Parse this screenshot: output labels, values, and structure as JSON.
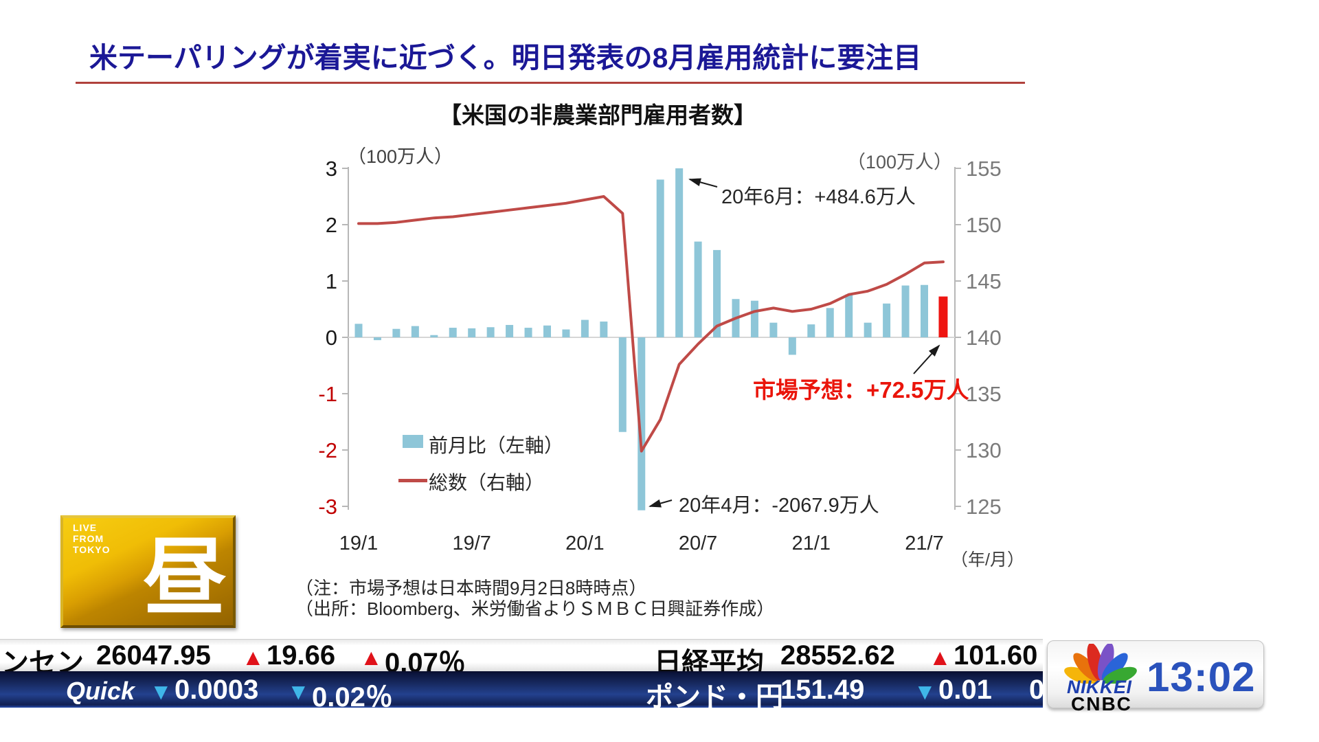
{
  "header": {
    "title": "米テーパリングが着実に近づく。明日発表の8月雇用統計に要注目",
    "title_color": "#1b1896",
    "underline_color": "#b0413c"
  },
  "chart": {
    "title": "【米国の非農業部門雇用者数】",
    "left_axis_unit": "（100万人）",
    "right_axis_unit": "（100万人）",
    "x_axis_unit": "（年/月）",
    "legend": {
      "bar_label": "前月比（左軸）",
      "line_label": "総数（右軸）"
    },
    "notes": [
      "（注：市場予想は日本時間9月2日8時時点）",
      "（出所：Bloomberg、米労働省よりＳＭＢＣ日興証券作成）"
    ]
  },
  "chart_data": {
    "type": "combo",
    "categories": [
      "19/1",
      "19/2",
      "19/3",
      "19/4",
      "19/5",
      "19/6",
      "19/7",
      "19/8",
      "19/9",
      "19/10",
      "19/11",
      "19/12",
      "20/1",
      "20/2",
      "20/3",
      "20/4",
      "20/5",
      "20/6",
      "20/7",
      "20/8",
      "20/9",
      "20/10",
      "20/11",
      "20/12",
      "21/1",
      "21/2",
      "21/3",
      "21/4",
      "21/5",
      "21/6",
      "21/7",
      "21/8"
    ],
    "x_tick_indices": [
      0,
      6,
      12,
      18,
      24,
      30
    ],
    "series": [
      {
        "name": "前月比（左軸）",
        "type": "bar",
        "axis": "left",
        "color": "#8ec6d8",
        "forecast_index": 31,
        "forecast_color": "#ee1511",
        "values": [
          0.24,
          -0.05,
          0.15,
          0.2,
          0.04,
          0.17,
          0.16,
          0.18,
          0.22,
          0.17,
          0.21,
          0.14,
          0.31,
          0.28,
          -1.68,
          -20.679,
          2.8,
          4.846,
          1.7,
          1.55,
          0.68,
          0.65,
          0.26,
          -0.31,
          0.23,
          0.52,
          0.76,
          0.26,
          0.6,
          0.92,
          0.93,
          0.725
        ]
      },
      {
        "name": "総数（右軸）",
        "type": "line",
        "axis": "right",
        "color": "#bf4a47",
        "values": [
          150.1,
          150.1,
          150.2,
          150.4,
          150.6,
          150.7,
          150.9,
          151.1,
          151.3,
          151.5,
          151.7,
          151.9,
          152.2,
          152.5,
          151.0,
          129.9,
          132.7,
          137.6,
          139.4,
          141.0,
          141.7,
          142.3,
          142.6,
          142.3,
          142.5,
          143.0,
          143.8,
          144.1,
          144.7,
          145.6,
          146.6,
          146.7
        ]
      }
    ],
    "left_axis": {
      "min": -3,
      "max": 3,
      "ticks": [
        3,
        2,
        1,
        0,
        -1,
        -2,
        -3
      ],
      "label_color": "#1a1a1a",
      "negative_label_color": "#c00000"
    },
    "right_axis": {
      "min": 125,
      "max": 155,
      "ticks": [
        155,
        150,
        145,
        140,
        135,
        130,
        125
      ],
      "label_color": "#7a7a7a"
    },
    "grid": "zero-line-only",
    "annotations": [
      {
        "text": "20年6月：+484.6万人",
        "target": "20/6"
      },
      {
        "text": "20年4月：-2067.9万人",
        "target": "20/4"
      },
      {
        "text": "市場予想：+72.5万人",
        "target": "21/8",
        "color": "#ea150b"
      }
    ]
  },
  "badge": {
    "live_line1": "LIVE",
    "live_line2": "FROM",
    "live_line3": "TOKYO",
    "char": "昼"
  },
  "ticker": {
    "up_icon": "▲",
    "down_icon": "▼",
    "row1": {
      "name1": "ンセン",
      "price1": "26047.95",
      "chg1": "19.66",
      "pct1": "0.07％",
      "name2": "日経平均",
      "price2": "28552.62",
      "chg2": "101.60"
    },
    "row2": {
      "brand": "Quick",
      "chg1": "0.0003",
      "pct1": "0.02％",
      "name2": "ポンド・円",
      "price2": "151.49",
      "chg2": "0.01",
      "extra": "0"
    }
  },
  "logo": {
    "nikkei": "NIKKEI",
    "cnbc": "CNBC",
    "time": "13:02"
  }
}
